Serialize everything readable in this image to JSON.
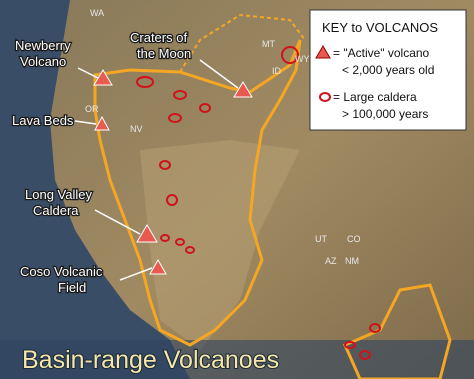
{
  "title": "Basin-range Volcanoes",
  "key": {
    "title": "KEY to VOLCANOS",
    "items": [
      {
        "lines": [
          "= \"Active\" volcano",
          "< 2,000 years old"
        ]
      },
      {
        "lines": [
          "= Large caldera",
          "> 100,000 years"
        ]
      }
    ]
  },
  "volcanoes": [
    {
      "lines": [
        "Newberry",
        "Volcano"
      ]
    },
    {
      "lines": [
        "Craters of",
        "the Moon"
      ]
    },
    {
      "lines": [
        "Lava Beds"
      ]
    },
    {
      "lines": [
        "Long Valley",
        "Caldera"
      ]
    },
    {
      "lines": [
        "Coso Volcanic",
        "Field"
      ]
    }
  ],
  "state_labels": [
    "WA",
    "MT",
    "ID",
    "WY",
    "OR",
    "NV",
    "UT",
    "CO",
    "AZ",
    "NM"
  ]
}
